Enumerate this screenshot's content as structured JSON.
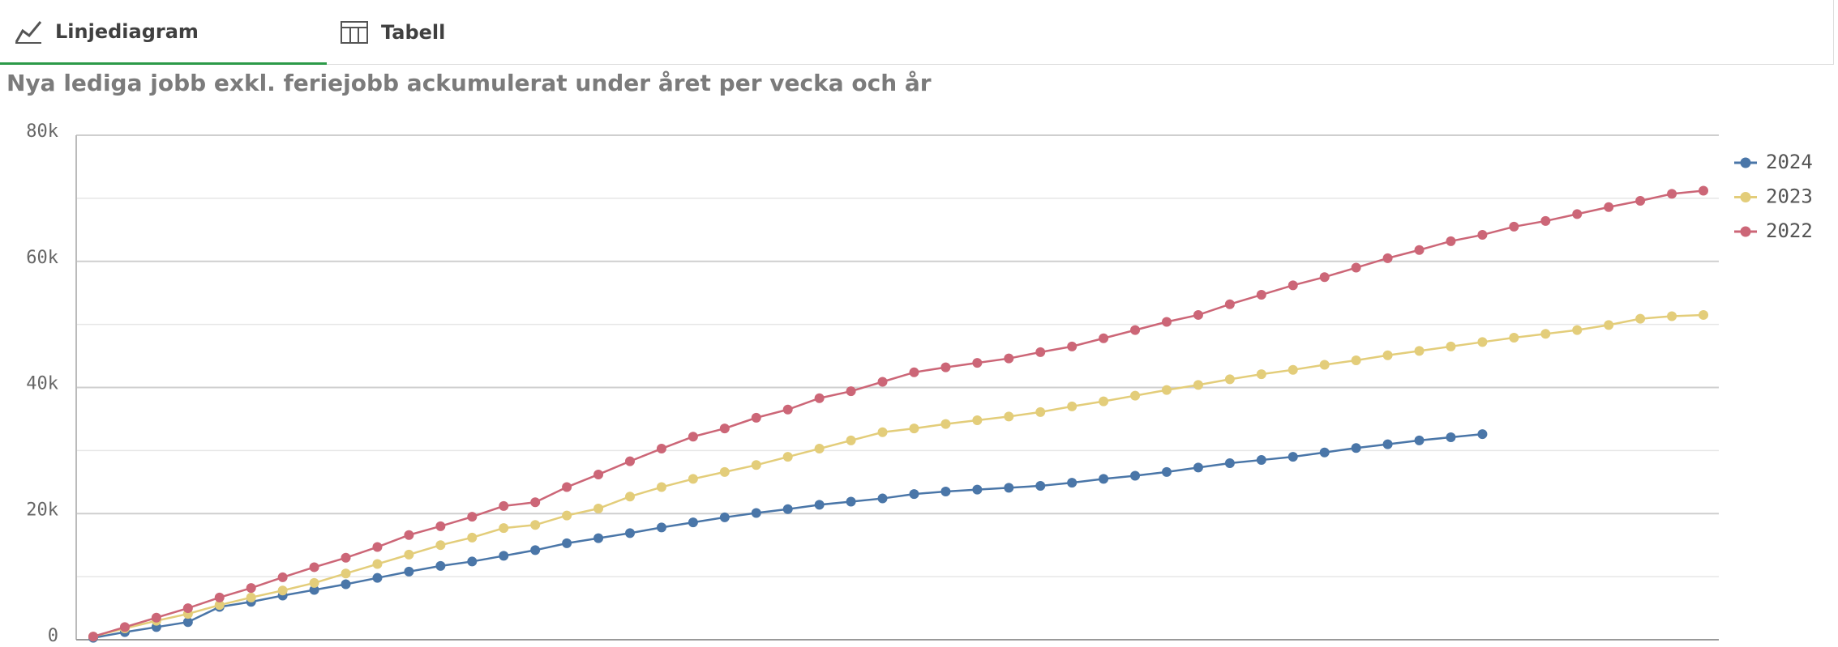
{
  "tabs": [
    "Linjediagram",
    "Tabell"
  ],
  "chart_data": {
    "type": "line",
    "title": "Nya lediga jobb exkl. feriejobb ackumulerat under året per vecka och år",
    "categories": [
      null,
      null,
      null,
      null,
      null,
      null,
      null,
      null,
      null,
      null,
      null,
      null,
      null,
      null,
      null,
      null,
      null,
      null,
      null,
      null,
      null,
      null,
      null,
      null,
      null,
      null,
      null,
      null,
      null,
      null,
      null,
      null,
      null,
      null,
      null,
      null,
      null,
      null,
      null,
      null,
      null,
      null,
      null,
      null,
      null,
      null,
      null,
      null,
      null,
      null,
      null,
      null
    ],
    "series": [
      {
        "name": "2024",
        "color": "#4a76a8",
        "values": [
          300,
          1200,
          2000,
          2800,
          5200,
          6000,
          7000,
          7900,
          8800,
          9800,
          10800,
          11700,
          12400,
          13300,
          14200,
          15300,
          16100,
          16900,
          17800,
          18600,
          19400,
          20100,
          20700,
          21400,
          21900,
          22400,
          23100,
          23500,
          23800,
          24100,
          24400,
          24900,
          25500,
          26000,
          26600,
          27300,
          28000,
          28500,
          29000,
          29700,
          30400,
          31000,
          31600,
          32100,
          32600,
          null,
          null,
          null,
          null,
          null,
          null,
          null
        ]
      },
      {
        "name": "2023",
        "color": "#e3cd7a",
        "values": [
          500,
          1800,
          3000,
          4100,
          5500,
          6700,
          7800,
          9000,
          10500,
          12000,
          13500,
          15000,
          16200,
          17700,
          18200,
          19700,
          20800,
          22700,
          24200,
          25500,
          26600,
          27700,
          29000,
          30300,
          31600,
          32900,
          33500,
          34200,
          34800,
          35400,
          36100,
          37000,
          37800,
          38700,
          39600,
          40400,
          41300,
          42100,
          42800,
          43600,
          44300,
          45100,
          45800,
          46500,
          47200,
          47900,
          48500,
          49100,
          49900,
          50900,
          51300,
          51500
        ]
      },
      {
        "name": "2022",
        "color": "#cc6677",
        "values": [
          500,
          2000,
          3500,
          5000,
          6700,
          8200,
          9900,
          11500,
          13000,
          14700,
          16600,
          18000,
          19500,
          21200,
          21800,
          24200,
          26200,
          28300,
          30300,
          32200,
          33500,
          35200,
          36500,
          38300,
          39400,
          40900,
          42400,
          43200,
          43900,
          44600,
          45600,
          46500,
          47800,
          49100,
          50400,
          51500,
          53200,
          54700,
          56200,
          57500,
          59000,
          60500,
          61800,
          63200,
          64200,
          65500,
          66400,
          67500,
          68600,
          69600,
          70700,
          71200
        ]
      }
    ],
    "ylim": [
      0,
      80000
    ],
    "yticks": [
      0,
      {
        "value": 20000,
        "label": "20k"
      },
      {
        "value": 40000,
        "label": "40k"
      },
      {
        "value": 60000,
        "label": "60k"
      },
      {
        "value": 80000,
        "label": "80k"
      }
    ],
    "minor_yticks": [
      10000,
      30000,
      50000,
      70000
    ],
    "grid": true,
    "legend": "right"
  }
}
